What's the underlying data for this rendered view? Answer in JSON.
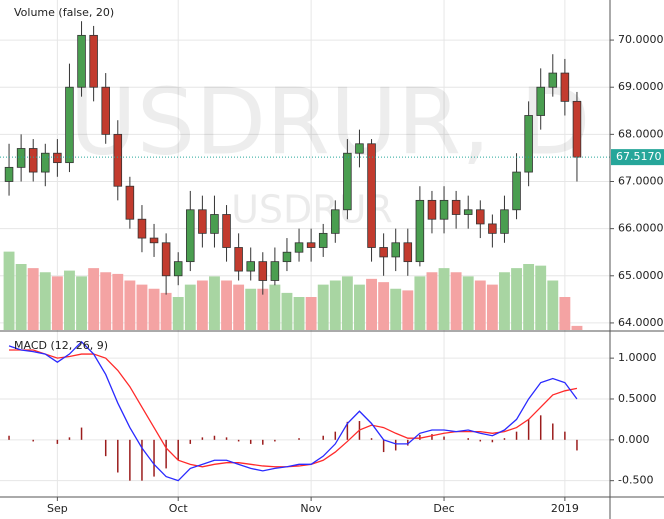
{
  "chart_data": {
    "type": "candlestick",
    "watermark": "USDRUR, D",
    "watermark_sub": "USDRUR",
    "categories": [
      null,
      null,
      null,
      null,
      "Sep",
      null,
      null,
      null,
      null,
      null,
      null,
      null,
      null,
      null,
      "Oct",
      null,
      null,
      null,
      null,
      null,
      null,
      null,
      null,
      null,
      null,
      "Nov",
      null,
      null,
      null,
      null,
      null,
      null,
      null,
      null,
      null,
      null,
      "Dec",
      null,
      null,
      null,
      null,
      null,
      null,
      null,
      null,
      null,
      "2019",
      null
    ],
    "open": [
      67.0,
      67.3,
      67.7,
      67.2,
      67.6,
      67.4,
      69.0,
      70.1,
      69.0,
      68.0,
      66.9,
      66.2,
      65.8,
      65.7,
      65.0,
      65.3,
      66.4,
      65.9,
      66.3,
      65.6,
      65.1,
      65.3,
      64.9,
      65.3,
      65.5,
      65.7,
      65.6,
      65.9,
      66.4,
      67.6,
      67.8,
      65.6,
      65.4,
      65.7,
      65.3,
      66.6,
      66.2,
      66.6,
      66.3,
      66.4,
      66.1,
      65.9,
      66.4,
      67.2,
      68.4,
      69.0,
      69.3,
      68.7
    ],
    "high": [
      67.8,
      68.0,
      67.9,
      67.8,
      67.9,
      69.5,
      70.4,
      70.3,
      69.3,
      68.3,
      67.1,
      66.5,
      66.1,
      65.9,
      65.5,
      66.8,
      66.7,
      66.7,
      66.5,
      65.9,
      65.6,
      65.5,
      65.6,
      65.8,
      66.0,
      66.0,
      66.1,
      66.6,
      67.9,
      68.1,
      67.9,
      65.9,
      66.0,
      66.0,
      66.9,
      66.8,
      66.9,
      66.8,
      66.7,
      66.6,
      66.3,
      66.7,
      67.6,
      68.7,
      69.4,
      69.7,
      69.6,
      68.9
    ],
    "low": [
      66.7,
      67.0,
      67.0,
      66.9,
      67.1,
      67.2,
      68.8,
      68.7,
      67.8,
      66.6,
      66.0,
      65.5,
      65.4,
      64.6,
      64.8,
      65.1,
      65.6,
      65.6,
      65.3,
      64.9,
      64.9,
      64.6,
      64.8,
      65.1,
      65.3,
      65.3,
      65.4,
      65.7,
      66.2,
      67.3,
      65.3,
      65.0,
      65.1,
      65.0,
      65.2,
      65.9,
      65.9,
      66.0,
      66.0,
      65.8,
      65.6,
      65.7,
      66.2,
      66.9,
      68.1,
      68.8,
      68.4,
      67.0
    ],
    "close": [
      67.3,
      67.7,
      67.2,
      67.6,
      67.4,
      69.0,
      70.1,
      69.0,
      68.0,
      66.9,
      66.2,
      65.8,
      65.7,
      65.0,
      65.3,
      66.4,
      65.9,
      66.3,
      65.6,
      65.1,
      65.3,
      64.9,
      65.3,
      65.5,
      65.7,
      65.6,
      65.9,
      66.4,
      67.6,
      67.8,
      65.6,
      65.4,
      65.7,
      65.3,
      66.6,
      66.2,
      66.6,
      66.3,
      66.4,
      66.1,
      65.9,
      66.4,
      67.2,
      68.4,
      69.0,
      69.3,
      68.7,
      67.517
    ],
    "up_color": "#4a9e50",
    "down_color": "#c23b2e",
    "ylim": [
      63.85,
      70.85
    ],
    "yticks": [
      {
        "value": 64,
        "label": "64.0000"
      },
      {
        "value": 65,
        "label": "65.0000"
      },
      {
        "value": 66,
        "label": "66.0000"
      },
      {
        "value": 67,
        "label": "67.0000"
      },
      {
        "value": 68,
        "label": "68.0000"
      },
      {
        "value": 69,
        "label": "69.0000"
      },
      {
        "value": 70,
        "label": "70.0000"
      }
    ],
    "last_price": {
      "value": 67.517,
      "label": "67.5170"
    },
    "last_price_color": "#26a69a",
    "grid": true,
    "volume": {
      "title": "Volume (false, 20)",
      "ylim": [
        0,
        400
      ],
      "up_color": "#a8d5a2",
      "down_color": "#f4a3a3",
      "values": [
        95,
        80,
        75,
        70,
        65,
        72,
        65,
        75,
        70,
        68,
        60,
        55,
        50,
        45,
        40,
        55,
        60,
        65,
        60,
        55,
        50,
        50,
        55,
        45,
        40,
        40,
        55,
        60,
        65,
        55,
        62,
        58,
        50,
        48,
        65,
        70,
        75,
        70,
        65,
        60,
        55,
        70,
        75,
        80,
        78,
        60,
        40,
        5
      ]
    },
    "macd": {
      "title": "MACD (12, 26, 9)",
      "ylim": [
        -0.7,
        1.32
      ],
      "yticks": [
        {
          "value": 1,
          "label": "1.0000"
        },
        {
          "value": 0.5,
          "label": "0.5000"
        },
        {
          "value": 0,
          "label": "0.000"
        },
        {
          "value": -0.5,
          "label": "-0.500"
        }
      ],
      "macd": {
        "color": "#2a2aff",
        "values": [
          1.15,
          1.1,
          1.08,
          1.05,
          0.95,
          1.05,
          1.2,
          1.05,
          0.8,
          0.45,
          0.15,
          -0.1,
          -0.3,
          -0.45,
          -0.5,
          -0.35,
          -0.3,
          -0.25,
          -0.25,
          -0.3,
          -0.35,
          -0.38,
          -0.35,
          -0.33,
          -0.3,
          -0.3,
          -0.2,
          -0.05,
          0.2,
          0.35,
          0.2,
          0.0,
          -0.05,
          -0.05,
          0.08,
          0.12,
          0.12,
          0.1,
          0.12,
          0.08,
          0.05,
          0.12,
          0.25,
          0.5,
          0.7,
          0.75,
          0.7,
          0.5
        ]
      },
      "signal": {
        "color": "#ff2a2a",
        "values": [
          1.1,
          1.1,
          1.1,
          1.05,
          1.0,
          1.02,
          1.05,
          1.05,
          1.0,
          0.85,
          0.65,
          0.4,
          0.15,
          -0.1,
          -0.25,
          -0.3,
          -0.33,
          -0.3,
          -0.28,
          -0.28,
          -0.3,
          -0.32,
          -0.33,
          -0.33,
          -0.32,
          -0.3,
          -0.25,
          -0.15,
          -0.02,
          0.12,
          0.18,
          0.15,
          0.08,
          0.02,
          0.02,
          0.05,
          0.08,
          0.1,
          0.1,
          0.1,
          0.08,
          0.1,
          0.15,
          0.25,
          0.4,
          0.55,
          0.6,
          0.63
        ]
      },
      "histogram": {
        "color": "#9b1c1c",
        "values": [
          0.05,
          0,
          -0.02,
          0,
          -0.05,
          0.03,
          0.15,
          0,
          -0.2,
          -0.4,
          -0.5,
          -0.5,
          -0.45,
          -0.35,
          -0.25,
          -0.05,
          0.03,
          0.05,
          0.03,
          -0.02,
          -0.05,
          -0.06,
          -0.02,
          0,
          0.02,
          0,
          0.05,
          0.1,
          0.22,
          0.23,
          0.02,
          -0.15,
          -0.13,
          -0.07,
          0.06,
          0.07,
          0.04,
          0,
          0.02,
          -0.02,
          -0.03,
          0.02,
          0.1,
          0.25,
          0.3,
          0.2,
          0.1,
          -0.13
        ]
      }
    }
  }
}
